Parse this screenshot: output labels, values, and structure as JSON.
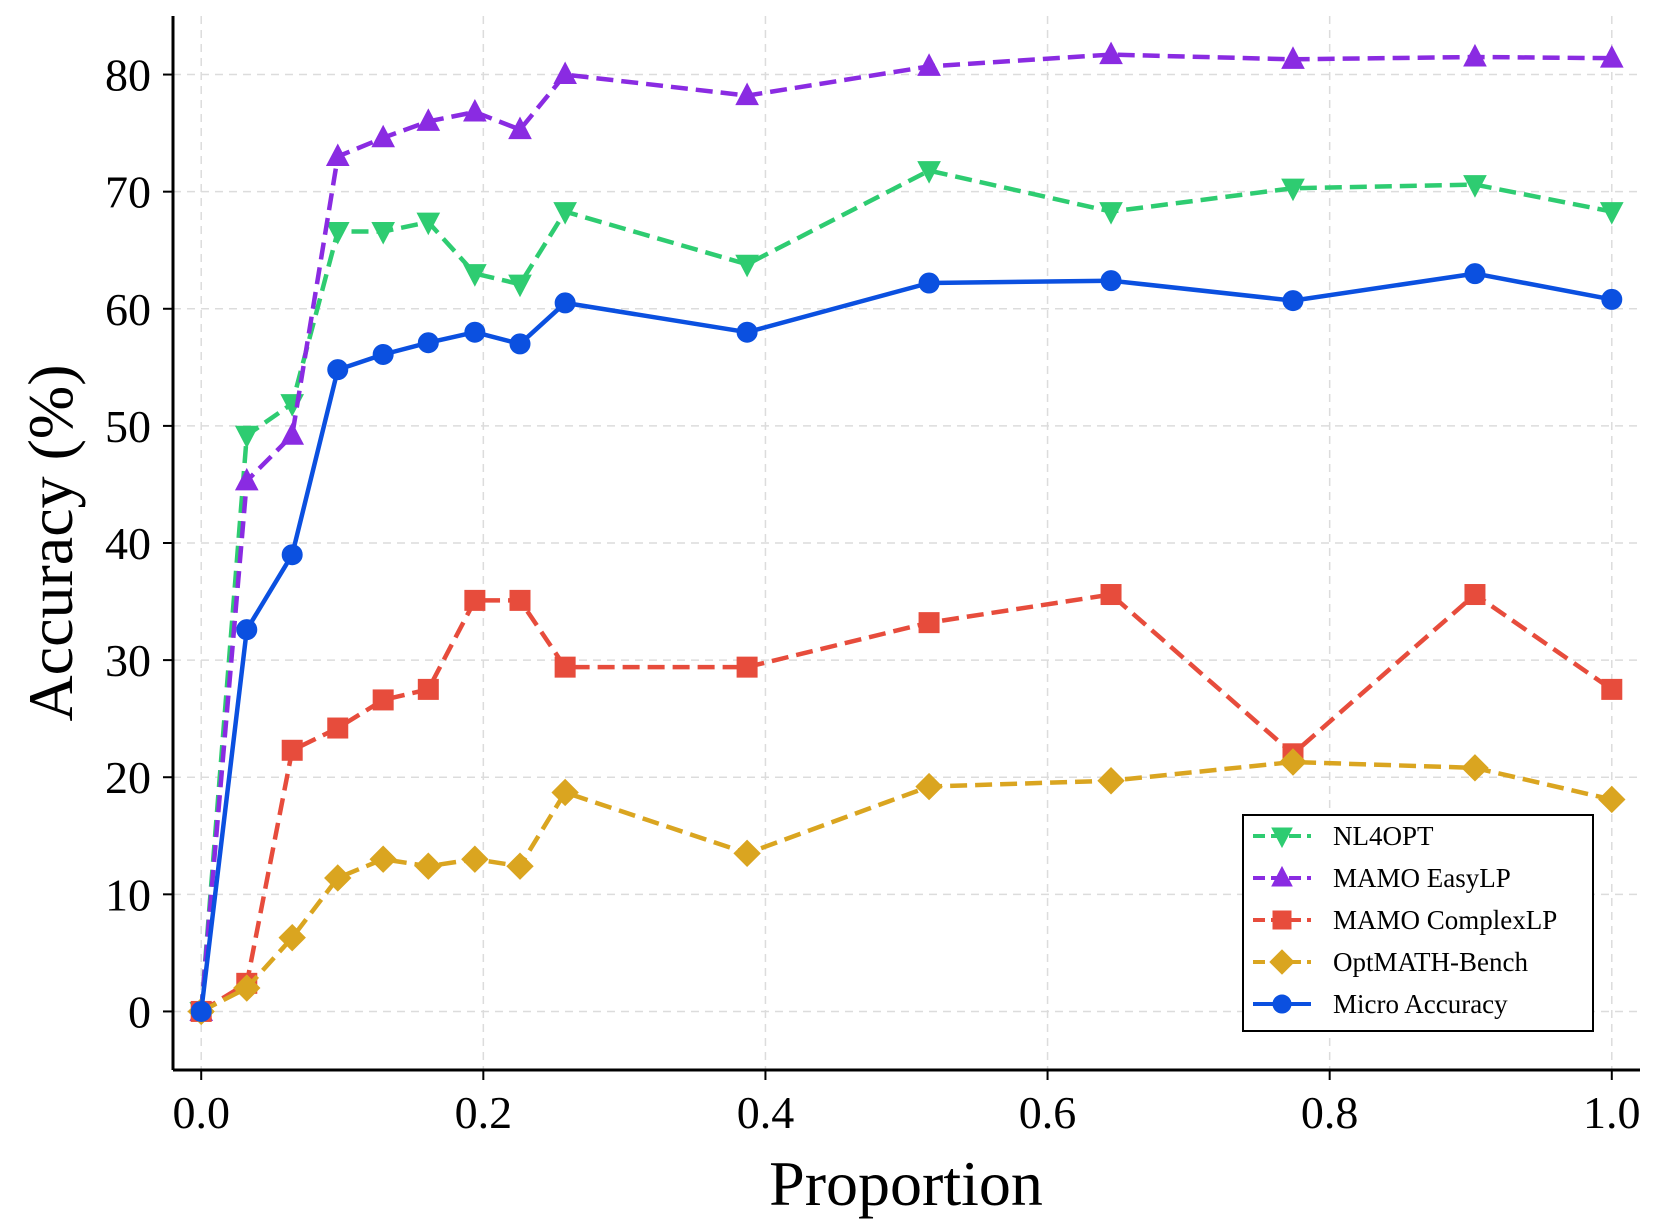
{
  "chart_data": {
    "type": "line",
    "title": "",
    "xlabel": "Proportion",
    "ylabel": "Accuracy (%)",
    "xlim": [
      -0.02,
      1.02
    ],
    "ylim": [
      -5,
      85
    ],
    "xticks": [
      0.0,
      0.2,
      0.4,
      0.6,
      0.8,
      1.0
    ],
    "xtick_labels": [
      "0.0",
      "0.2",
      "0.4",
      "0.6",
      "0.8",
      "1.0"
    ],
    "yticks": [
      0,
      10,
      20,
      30,
      40,
      50,
      60,
      70,
      80
    ],
    "ytick_labels": [
      "0",
      "10",
      "20",
      "30",
      "40",
      "50",
      "60",
      "70",
      "80"
    ],
    "grid": true,
    "legend_position": "lower-right",
    "x": [
      0.0,
      0.0323,
      0.0645,
      0.0968,
      0.129,
      0.161,
      0.194,
      0.226,
      0.258,
      0.387,
      0.516,
      0.645,
      0.774,
      0.903,
      1.0
    ],
    "series": [
      {
        "name": "NL4OPT",
        "color": "#2ecc71",
        "marker": "triangle-down",
        "dashed": true,
        "values": [
          0.0,
          49.2,
          51.9,
          66.6,
          66.6,
          67.4,
          63.0,
          62.1,
          68.3,
          63.8,
          71.8,
          68.3,
          70.3,
          70.6,
          68.3
        ]
      },
      {
        "name": "MAMO EasyLP",
        "color": "#8a2be2",
        "marker": "triangle-up",
        "dashed": true,
        "values": [
          0.0,
          45.3,
          49.2,
          73.0,
          74.6,
          76.0,
          76.8,
          75.3,
          80.0,
          78.2,
          80.7,
          81.7,
          81.3,
          81.5,
          81.4
        ]
      },
      {
        "name": "MAMO ComplexLP",
        "color": "#e74c3c",
        "marker": "square",
        "dashed": true,
        "values": [
          0.0,
          2.4,
          22.3,
          24.2,
          26.6,
          27.5,
          35.1,
          35.1,
          29.4,
          29.4,
          33.2,
          35.6,
          22.0,
          35.6,
          27.5
        ]
      },
      {
        "name": "OptMATH-Bench",
        "color": "#daa520",
        "marker": "diamond",
        "dashed": true,
        "values": [
          0.0,
          2.0,
          6.3,
          11.4,
          13.0,
          12.4,
          13.0,
          12.4,
          18.7,
          13.5,
          19.2,
          19.7,
          21.3,
          20.8,
          18.1
        ]
      },
      {
        "name": "Micro Accuracy",
        "color": "#0b50e0",
        "marker": "circle",
        "dashed": false,
        "values": [
          0.0,
          32.6,
          39.0,
          54.8,
          56.1,
          57.1,
          58.0,
          57.0,
          60.5,
          58.0,
          62.2,
          62.4,
          60.7,
          63.0,
          60.8
        ]
      }
    ]
  }
}
